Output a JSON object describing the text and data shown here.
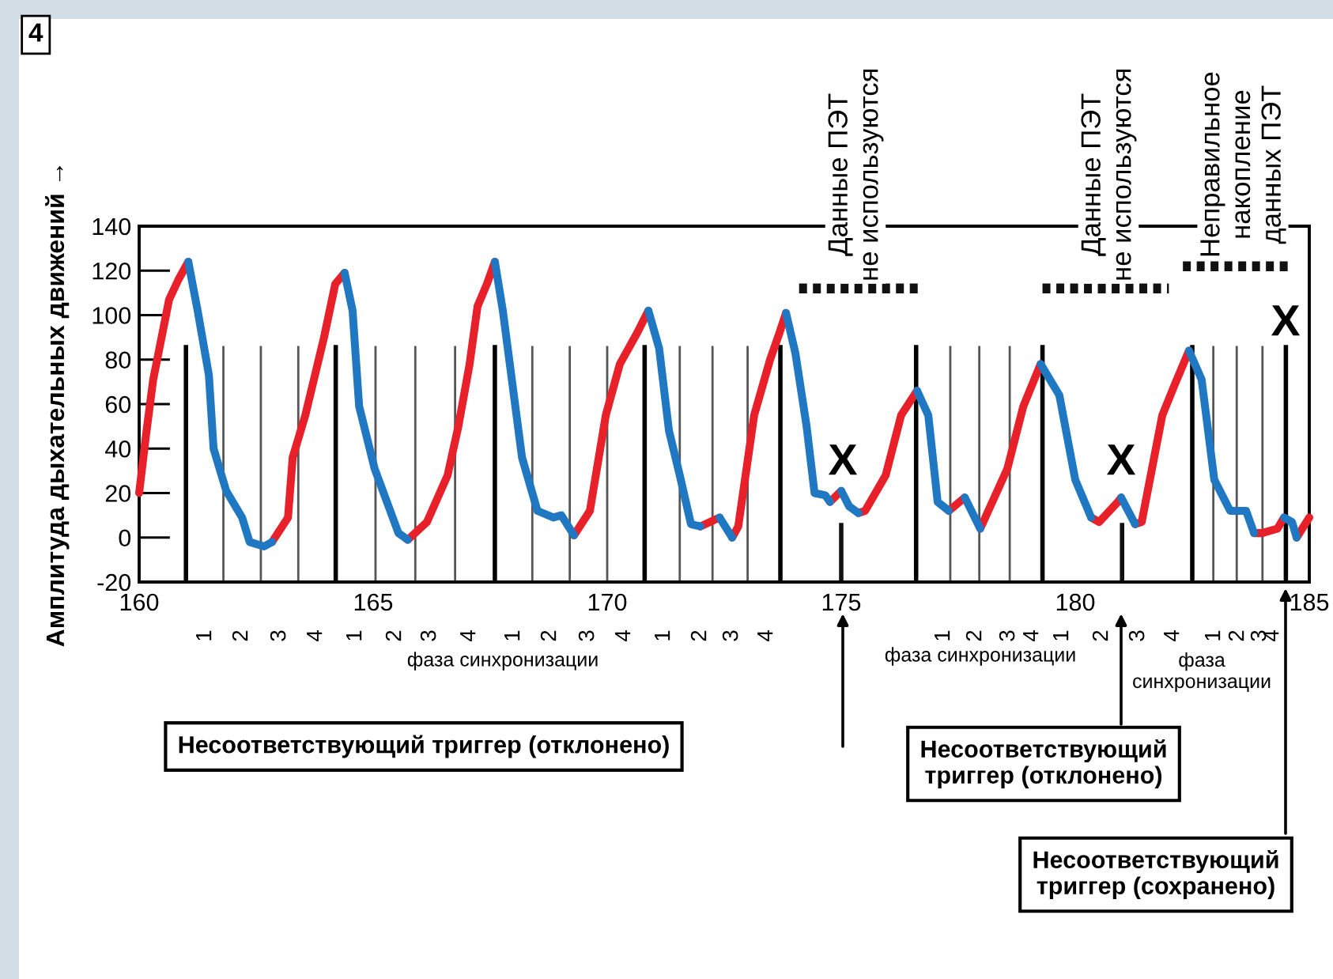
{
  "chart_data": {
    "type": "line",
    "ylabel": "Амплитуда дыхательных движений →",
    "xlim": [
      160,
      185
    ],
    "xticks": [
      160,
      165,
      170,
      175,
      180,
      185
    ],
    "ylim": [
      -20,
      140
    ],
    "yticks": [
      -20,
      0,
      20,
      40,
      60,
      80,
      100,
      120,
      140
    ],
    "grid": false,
    "marker": "none",
    "line_style": "solid",
    "series": [
      {
        "color": "#e8202a",
        "x": [
          160.0,
          160.14,
          160.3,
          160.64,
          160.84,
          161.05,
          null,
          162.84,
          163.18,
          163.28,
          163.55,
          163.95,
          164.19,
          164.39,
          null,
          165.74,
          166.15,
          166.59,
          166.82,
          167.06,
          167.23,
          167.43,
          167.6,
          null,
          169.29,
          169.63,
          169.97,
          170.27,
          170.64,
          170.88,
          null,
          171.99,
          172.4,
          null,
          172.67,
          172.8,
          173.14,
          173.48,
          173.68,
          173.82,
          null,
          174.76,
          175.0,
          null,
          175.37,
          175.51,
          175.95,
          176.28,
          176.62,
          null,
          177.3,
          177.64,
          null,
          177.97,
          178.55,
          178.89,
          179.26,
          null,
          180.34,
          180.51,
          180.91,
          180.98,
          null,
          181.28,
          181.42,
          181.86,
          182.13,
          182.43,
          null,
          183.82,
          183.99,
          184.32,
          184.46,
          null,
          184.73,
          185.0
        ],
        "values": [
          20,
          45,
          71,
          107,
          116,
          124,
          null,
          -2,
          9,
          36,
          55,
          90,
          114,
          119,
          null,
          -1,
          7,
          28,
          50,
          78,
          104,
          114,
          124,
          null,
          1,
          12,
          55,
          78,
          92,
          102,
          null,
          5,
          9,
          null,
          0,
          5,
          55,
          80,
          92,
          101,
          null,
          16,
          21,
          null,
          11,
          12,
          28,
          55,
          66,
          null,
          12,
          18,
          null,
          4,
          31,
          59,
          78,
          null,
          9,
          7,
          16,
          18,
          null,
          6,
          7,
          55,
          69,
          84,
          null,
          2,
          2,
          4,
          9,
          null,
          0,
          9
        ]
      },
      {
        "color": "#1f78c1",
        "x": [
          161.05,
          161.25,
          161.49,
          161.59,
          161.86,
          162.2,
          162.36,
          162.67,
          162.84,
          null,
          164.39,
          164.56,
          164.7,
          165.03,
          165.54,
          165.74,
          null,
          167.6,
          167.77,
          168.18,
          168.51,
          168.85,
          169.02,
          169.29,
          null,
          170.88,
          171.11,
          171.32,
          171.55,
          171.79,
          171.99,
          null,
          172.4,
          172.67,
          null,
          173.82,
          174.02,
          174.26,
          174.43,
          174.66,
          174.76,
          null,
          175.0,
          175.17,
          175.37,
          null,
          176.62,
          176.86,
          177.06,
          177.3,
          null,
          177.64,
          177.97,
          null,
          179.26,
          179.66,
          180.0,
          180.34,
          null,
          180.98,
          181.28,
          null,
          182.43,
          182.7,
          182.97,
          183.31,
          183.65,
          183.82,
          null,
          184.46,
          184.63,
          184.73
        ],
        "values": [
          124,
          102,
          73,
          40,
          21,
          9,
          -2,
          -4,
          -2,
          null,
          119,
          102,
          59,
          31,
          2,
          -1,
          null,
          124,
          102,
          36,
          12,
          9,
          10,
          1,
          null,
          102,
          85,
          48,
          28,
          6,
          5,
          null,
          9,
          0,
          null,
          101,
          83,
          50,
          20,
          19,
          16,
          null,
          21,
          14,
          11,
          null,
          66,
          55,
          16,
          12,
          null,
          18,
          4,
          null,
          78,
          64,
          26,
          9,
          null,
          18,
          6,
          null,
          84,
          71,
          26,
          12,
          12,
          2,
          null,
          9,
          7,
          0
        ]
      },
      {
        "color": "#111111",
        "line_style": "dotted",
        "x": [
          174.1,
          176.7
        ],
        "values": [
          112,
          112
        ]
      },
      {
        "color": "#111111",
        "line_style": "dotted",
        "x": [
          179.3,
          182.0
        ],
        "values": [
          112,
          112
        ]
      },
      {
        "color": "#111111",
        "line_style": "dotted",
        "x": [
          182.3,
          184.6
        ],
        "values": [
          122,
          122
        ]
      }
    ],
    "ref_lines": [
      {
        "axis": "x",
        "value": 161.0,
        "color": "#000000"
      },
      {
        "axis": "x",
        "value": 164.2,
        "color": "#000000"
      },
      {
        "axis": "x",
        "value": 167.6,
        "color": "#000000"
      },
      {
        "axis": "x",
        "value": 170.8,
        "color": "#000000"
      },
      {
        "axis": "x",
        "value": 173.7,
        "color": "#000000"
      },
      {
        "axis": "x",
        "value": 176.6,
        "color": "#000000"
      },
      {
        "axis": "x",
        "value": 179.3,
        "color": "#000000"
      },
      {
        "axis": "x",
        "value": 182.5,
        "color": "#000000"
      },
      {
        "axis": "x",
        "value": 184.5,
        "color": "#000000"
      },
      {
        "axis": "x",
        "value": 175.0,
        "color": "#111111"
      },
      {
        "axis": "x",
        "value": 181.0,
        "color": "#111111"
      },
      {
        "axis": "x",
        "value": 161.8,
        "color": "#555555"
      },
      {
        "axis": "x",
        "value": 162.6,
        "color": "#555555"
      },
      {
        "axis": "x",
        "value": 163.4,
        "color": "#555555"
      },
      {
        "axis": "x",
        "value": 165.05,
        "color": "#555555"
      },
      {
        "axis": "x",
        "value": 165.9,
        "color": "#555555"
      },
      {
        "axis": "x",
        "value": 166.75,
        "color": "#555555"
      },
      {
        "axis": "x",
        "value": 168.4,
        "color": "#555555"
      },
      {
        "axis": "x",
        "value": 169.2,
        "color": "#555555"
      },
      {
        "axis": "x",
        "value": 170.0,
        "color": "#555555"
      },
      {
        "axis": "x",
        "value": 171.55,
        "color": "#555555"
      },
      {
        "axis": "x",
        "value": 172.25,
        "color": "#555555"
      },
      {
        "axis": "x",
        "value": 173.0,
        "color": "#555555"
      },
      {
        "axis": "x",
        "value": 177.33,
        "color": "#555555"
      },
      {
        "axis": "x",
        "value": 177.95,
        "color": "#555555"
      },
      {
        "axis": "x",
        "value": 178.6,
        "color": "#555555"
      },
      {
        "axis": "x",
        "value": 182.95,
        "color": "#555555"
      },
      {
        "axis": "x",
        "value": 183.45,
        "color": "#555555"
      },
      {
        "axis": "x",
        "value": 184.0,
        "color": "#555555"
      }
    ],
    "annotations": [
      "4",
      "X",
      "X",
      "X",
      "Несоответствующий триггер (отклонено)",
      "Несоответствующий\nтриггер (отклонено)",
      "Несоответствующий\nтриггер (сохранено)",
      "фаза синхронизации",
      "фаза синхронизации",
      "фаза\nсинхронизации",
      "Данные ПЭТ\nне используются",
      "Данные ПЭТ\nне используются",
      "Неправильное\nнакопление\nданных ПЭТ",
      "1",
      "2",
      "3",
      "4",
      "1",
      "2",
      "3",
      "4",
      "1",
      "2",
      "3",
      "4",
      "1",
      "2",
      "3",
      "4",
      "1",
      "2",
      "3",
      "4",
      "1",
      "2",
      "3",
      "4",
      "1",
      "2",
      "3",
      "4"
    ]
  }
}
